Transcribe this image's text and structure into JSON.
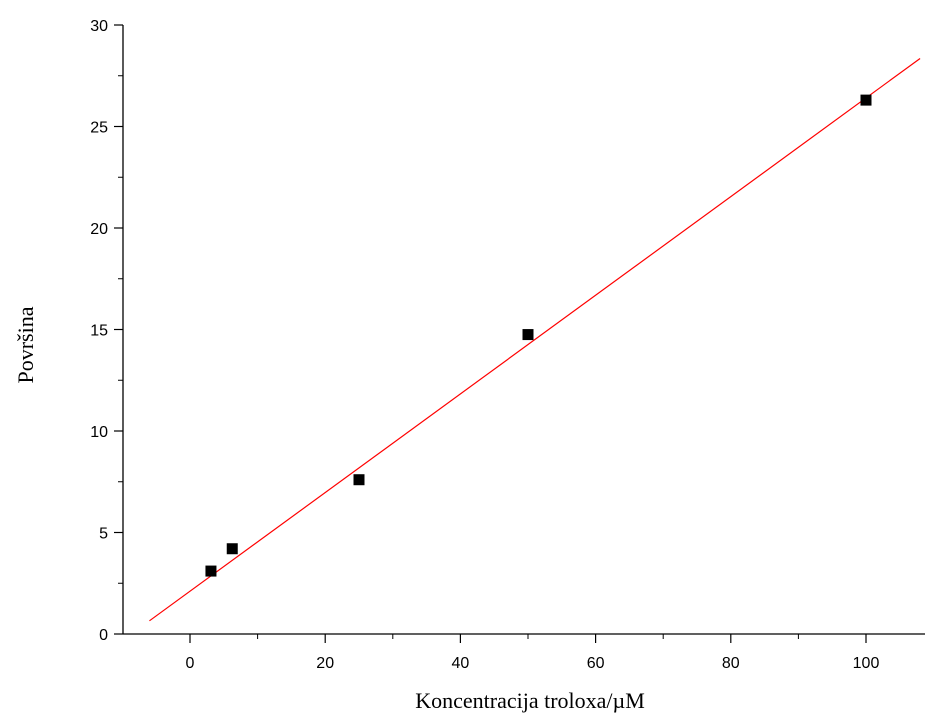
{
  "chart_data": {
    "type": "scatter",
    "title": "",
    "xlabel": "Koncentracija troloxa/µM",
    "ylabel": "Površina",
    "xlim": [
      -10,
      108
    ],
    "ylim": [
      0,
      30
    ],
    "xticks": [
      0,
      20,
      40,
      60,
      80,
      100
    ],
    "yticks": [
      0,
      5,
      10,
      15,
      20,
      25,
      30
    ],
    "grid": false,
    "legend": "none",
    "series": [
      {
        "type": "scatter",
        "marker": "square",
        "color": "#000000",
        "points": [
          {
            "x": 3.1,
            "y": 3.1
          },
          {
            "x": 6.25,
            "y": 4.2
          },
          {
            "x": 25,
            "y": 7.6
          },
          {
            "x": 50,
            "y": 14.75
          },
          {
            "x": 100,
            "y": 26.3
          }
        ]
      },
      {
        "type": "line",
        "fit": "linear",
        "color": "#ff0000",
        "x": [
          -6,
          108
        ],
        "y": [
          0.65,
          28.35
        ]
      }
    ]
  }
}
